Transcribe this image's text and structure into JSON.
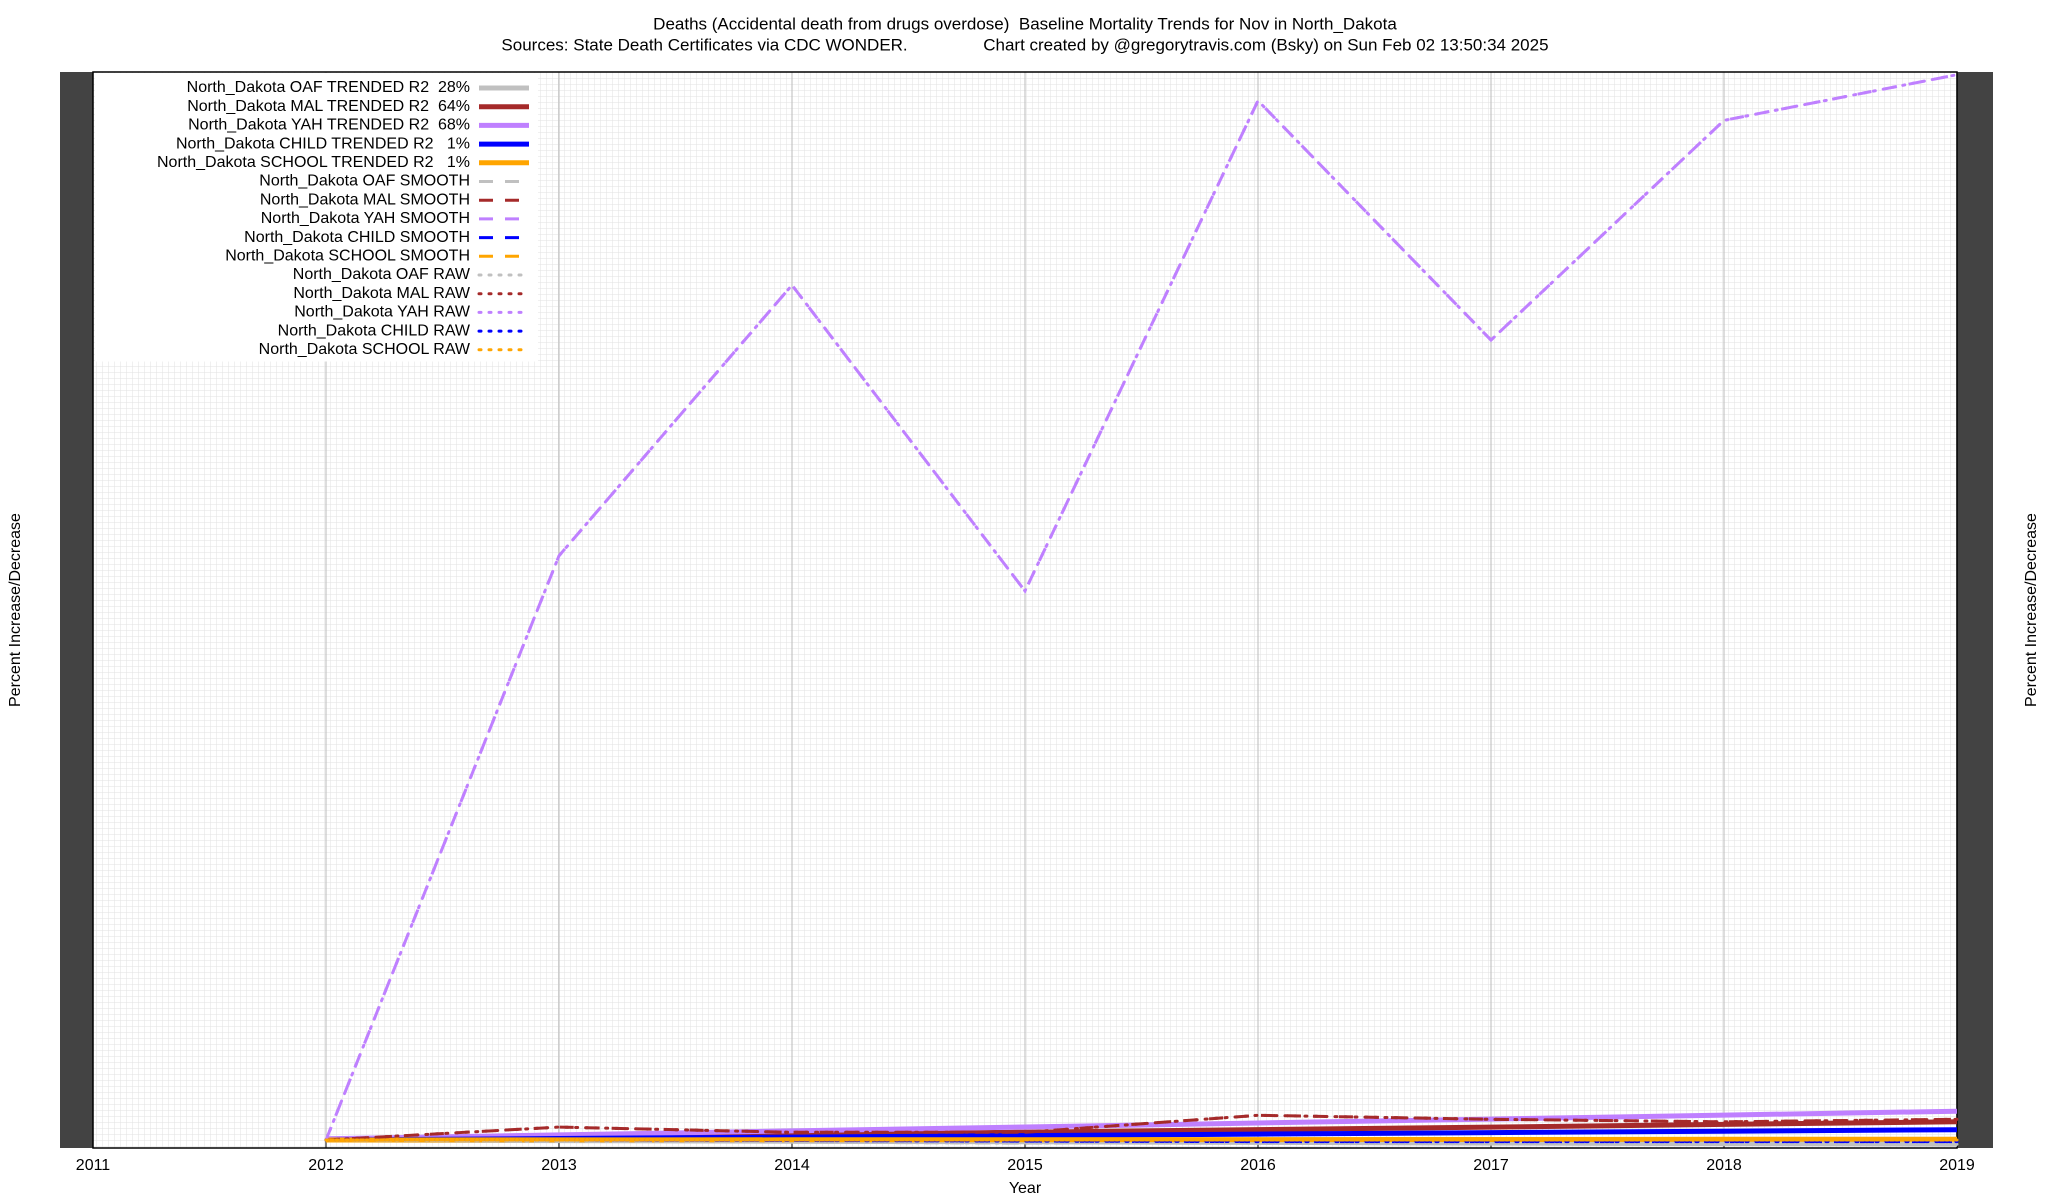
{
  "chart_data": {
    "type": "line",
    "title": "Deaths (Accidental death from drugs overdose)  Baseline Mortality Trends for Nov in North_Dakota",
    "subtitle": "Sources: State Death Certificates via CDC WONDER.                Chart created by @gregorytravis.com (Bsky) on Sun Feb 02 13:50:34 2025",
    "x_label": "Year",
    "y_label": "Percent Increase/Decrease",
    "y2_label": "Percent Increase/Decrease",
    "x": [
      2012,
      2013,
      2014,
      2015,
      2016,
      2017,
      2018,
      2019
    ],
    "xlim": [
      2011,
      2019
    ],
    "xticks": [
      2011,
      2012,
      2013,
      2014,
      2015,
      2016,
      2017,
      2018,
      2019
    ],
    "ylim": [
      -75,
      10000
    ],
    "grid": true,
    "legend": "top-left",
    "series": [
      {
        "name": "North_Dakota OAF TRENDED R2  28%",
        "color": "#c0c0c0",
        "dash": "solid",
        "values": [
          0,
          -6,
          -11,
          -17,
          -23,
          -29,
          -34,
          -40
        ]
      },
      {
        "name": "North_Dakota MAL TRENDED R2  64%",
        "color": "#a52a2a",
        "dash": "solid",
        "values": [
          0,
          24,
          49,
          73,
          97,
          121,
          146,
          170
        ]
      },
      {
        "name": "North_Dakota YAH TRENDED R2  68%",
        "color": "#bf80ff",
        "dash": "solid",
        "values": [
          11,
          48,
          85,
          122,
          159,
          196,
          233,
          270
        ]
      },
      {
        "name": "North_Dakota CHILD TRENDED R2   1%",
        "color": "#0000ff",
        "dash": "solid",
        "values": [
          0,
          14,
          27,
          41,
          55,
          69,
          82,
          96
        ]
      },
      {
        "name": "North_Dakota SCHOOL TRENDED R2   1%",
        "color": "#ffa500",
        "dash": "solid",
        "values": [
          0,
          1,
          2,
          3,
          4,
          5,
          6,
          7
        ]
      },
      {
        "name": "North_Dakota OAF SMOOTH",
        "color": "#c0c0c0",
        "dash": "dashed",
        "values": [
          0,
          -10,
          -20,
          -30,
          -20,
          -20,
          -30,
          -40
        ]
      },
      {
        "name": "North_Dakota MAL SMOOTH",
        "color": "#a52a2a",
        "dash": "dashed",
        "values": [
          0,
          121,
          72,
          72,
          231,
          194,
          170,
          194
        ]
      },
      {
        "name": "North_Dakota YAH SMOOTH",
        "color": "#bf80ff",
        "dash": "dashed",
        "values": [
          0,
          5470,
          8005,
          5140,
          9731,
          7490,
          9547,
          9975
        ]
      },
      {
        "name": "North_Dakota CHILD SMOOTH",
        "color": "#0000ff",
        "dash": "dashed",
        "values": [
          0,
          0,
          -5,
          -10,
          -15,
          -15,
          -15,
          -15
        ]
      },
      {
        "name": "North_Dakota SCHOOL SMOOTH",
        "color": "#ffa500",
        "dash": "dashed",
        "values": [
          0,
          0,
          0,
          0,
          0,
          0,
          0,
          0
        ]
      },
      {
        "name": "North_Dakota OAF RAW",
        "color": "#c0c0c0",
        "dash": "dotted",
        "values": [
          0,
          -10,
          -20,
          -30,
          -20,
          -20,
          -30,
          -40
        ]
      },
      {
        "name": "North_Dakota MAL RAW",
        "color": "#a52a2a",
        "dash": "dotted",
        "values": [
          0,
          121,
          72,
          72,
          231,
          194,
          170,
          194
        ]
      },
      {
        "name": "North_Dakota YAH RAW",
        "color": "#bf80ff",
        "dash": "dotted",
        "values": [
          0,
          5470,
          8005,
          5140,
          9731,
          7490,
          9547,
          9975
        ]
      },
      {
        "name": "North_Dakota CHILD RAW",
        "color": "#0000ff",
        "dash": "dotted",
        "values": [
          0,
          0,
          -5,
          -10,
          -15,
          -15,
          -15,
          -15
        ]
      },
      {
        "name": "North_Dakota SCHOOL RAW",
        "color": "#ffa500",
        "dash": "dotted",
        "values": [
          0,
          0,
          0,
          0,
          0,
          0,
          0,
          0
        ]
      }
    ]
  }
}
